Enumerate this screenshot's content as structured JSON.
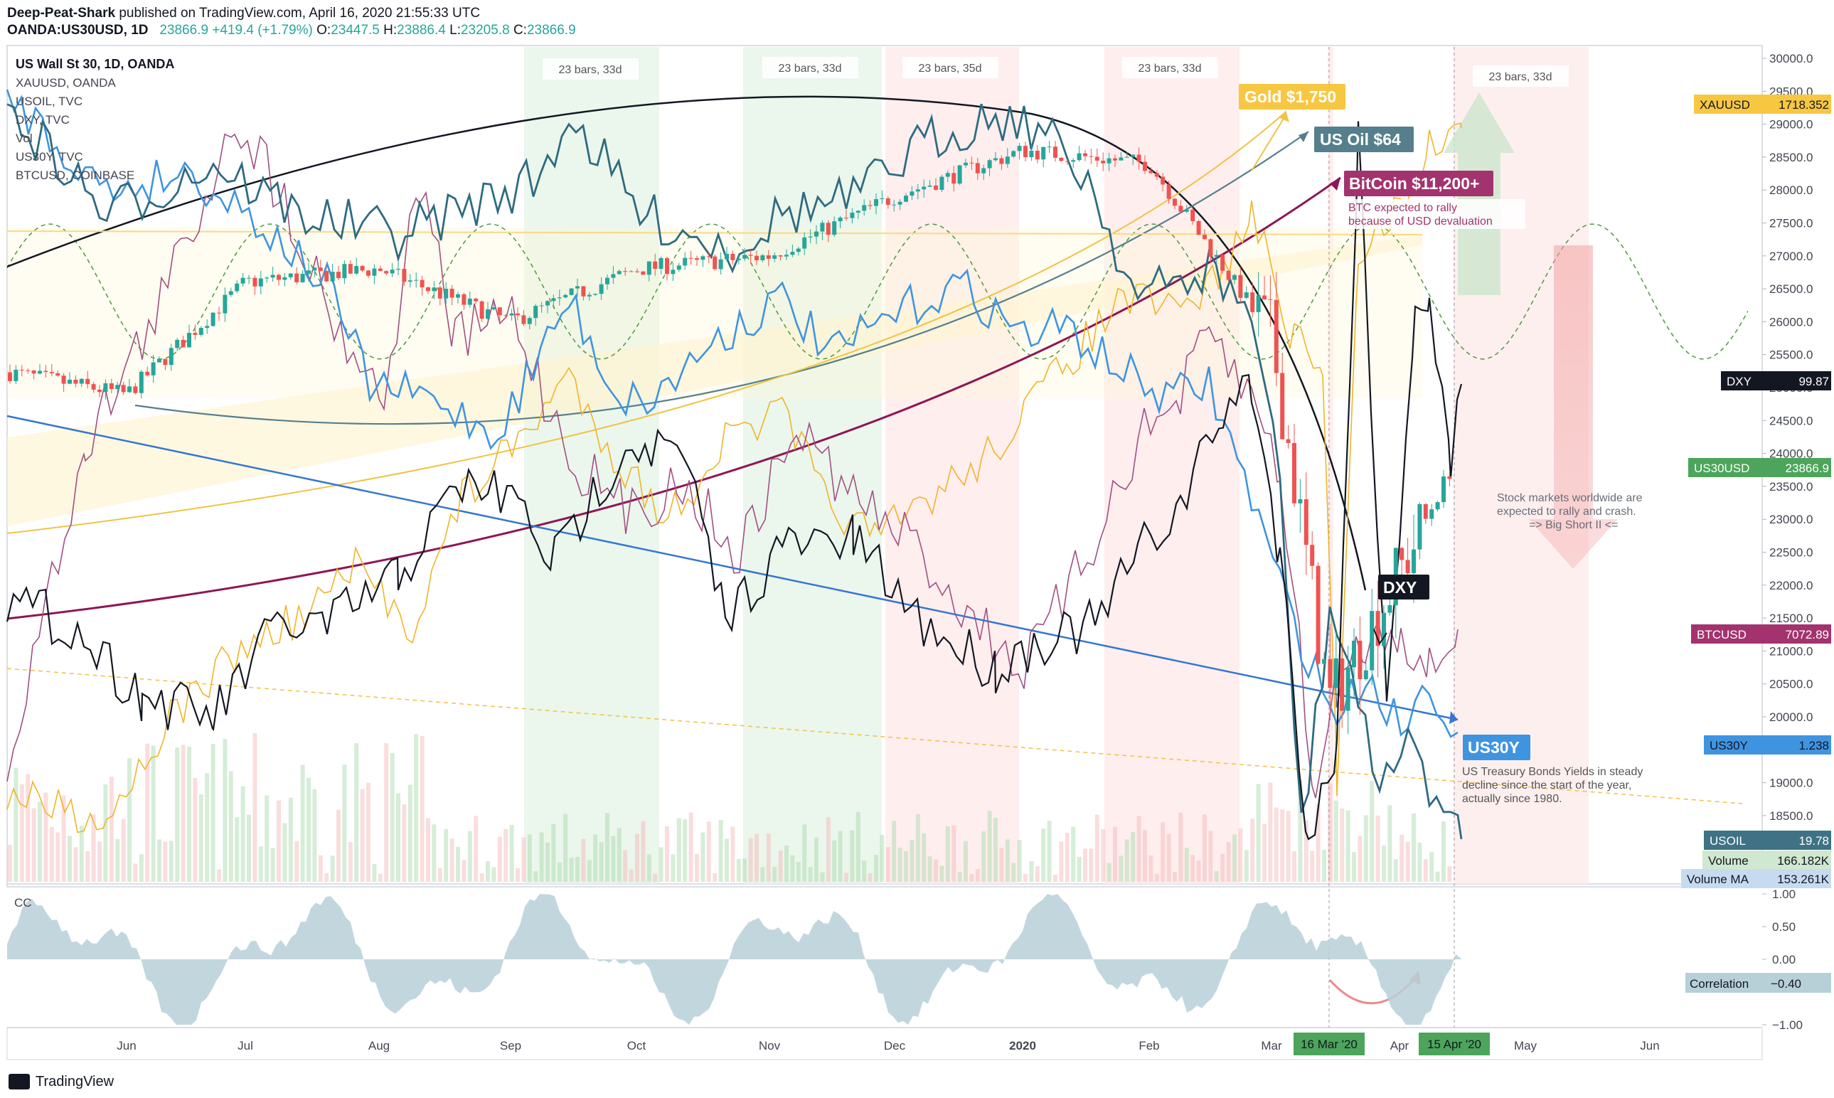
{
  "header": {
    "author": "Deep-Peat-Shark",
    "published": "published on TradingView.com, April 16, 2020 21:55:33 UTC",
    "symbol": "OANDA:US30USD, 1D",
    "last": "23866.9",
    "change": "+419.4 (+1.79%)",
    "o_label": "O:",
    "o": "23447.5",
    "h_label": "H:",
    "h": "23886.4",
    "l_label": "L:",
    "l": "23205.8",
    "c_label": "C:",
    "c": "23866.9"
  },
  "footer": {
    "brand": "TradingView"
  },
  "colors": {
    "dow": "#131722",
    "gold": "#f7c742",
    "oil": "#2e6b80",
    "dxy": "#131722",
    "us30y": "#3f94e0",
    "btc": "#a05082",
    "up": "#26a69a",
    "down": "#ef5350"
  },
  "chart_data": {
    "type": "line",
    "title": "US Wall St 30, 1D, OANDA",
    "legend": [
      "US Wall St 30, 1D, OANDA",
      "XAUUSD, OANDA",
      "USOIL, TVC",
      "DXY, TVC",
      "Vol",
      "US30Y, TVC",
      "BTCUSD, COINBASE"
    ],
    "x_ticks": [
      "Jun",
      "Jul",
      "Aug",
      "Sep",
      "Oct",
      "Nov",
      "Dec",
      "2020",
      "Feb",
      "Mar",
      "Apr",
      "May",
      "Jun"
    ],
    "y_ticks": [
      30000,
      29500,
      29000,
      28500,
      28000,
      27500,
      27000,
      26500,
      26000,
      25500,
      25000,
      24500,
      24000,
      23500,
      23000,
      22500,
      22000,
      21500,
      21000,
      20500,
      20000,
      19500,
      19000,
      18500
    ],
    "ylim": [
      18000,
      30200
    ],
    "dow_approx": {
      "x": [
        "Jun",
        "Jul",
        "Aug",
        "Sep",
        "Oct",
        "Nov",
        "Dec",
        "2020",
        "Feb",
        "Mar",
        "16 Mar '20",
        "Apr",
        "15 Apr '20"
      ],
      "values": [
        24900,
        26600,
        26800,
        26000,
        26800,
        27000,
        27900,
        28600,
        28400,
        25800,
        20200,
        22200,
        23866.9
      ]
    },
    "price_tags": [
      {
        "name": "XAUUSD",
        "value": "1718.352"
      },
      {
        "name": "DXY",
        "value": "99.87"
      },
      {
        "name": "US30USD",
        "value": "23866.9"
      },
      {
        "name": "BTCUSD",
        "value": "7072.89"
      },
      {
        "name": "US30Y",
        "value": "1.238"
      },
      {
        "name": "USOIL",
        "value": "19.78"
      },
      {
        "name": "Volume",
        "value": "166.182K"
      },
      {
        "name": "Volume MA",
        "value": "153.261K"
      }
    ],
    "cycle_labels": [
      "23 bars, 33d",
      "23 bars, 33d",
      "23 bars, 35d",
      "23 bars, 33d",
      "23 bars, 33d"
    ],
    "annotations": {
      "gold": "Gold $1,750",
      "oil": "US Oil $64",
      "btc": "BitCoin $11,200+",
      "btc_note_1": "BTC expected to rally",
      "btc_note_2": "because of USD devaluation",
      "dxy": "DXY",
      "us30y": "US30Y",
      "us30y_note_1": "US Treasury Bonds Yields in steady",
      "us30y_note_2": "decline since the start of the year,",
      "us30y_note_3": "actually since 1980.",
      "stock_note_1": "Stock markets worldwide are",
      "stock_note_2": "expected to rally and crash.",
      "stock_note_3": "=> Big Short II <="
    },
    "date_tags": [
      "16 Mar '20",
      "15 Apr '20"
    ],
    "indicator": {
      "name": "CC",
      "ticks": [
        "1.00",
        "0.50",
        "0.00",
        "Correlation",
        "−1.00"
      ],
      "correlation_label": "Correlation",
      "correlation_value": "−0.40"
    }
  }
}
